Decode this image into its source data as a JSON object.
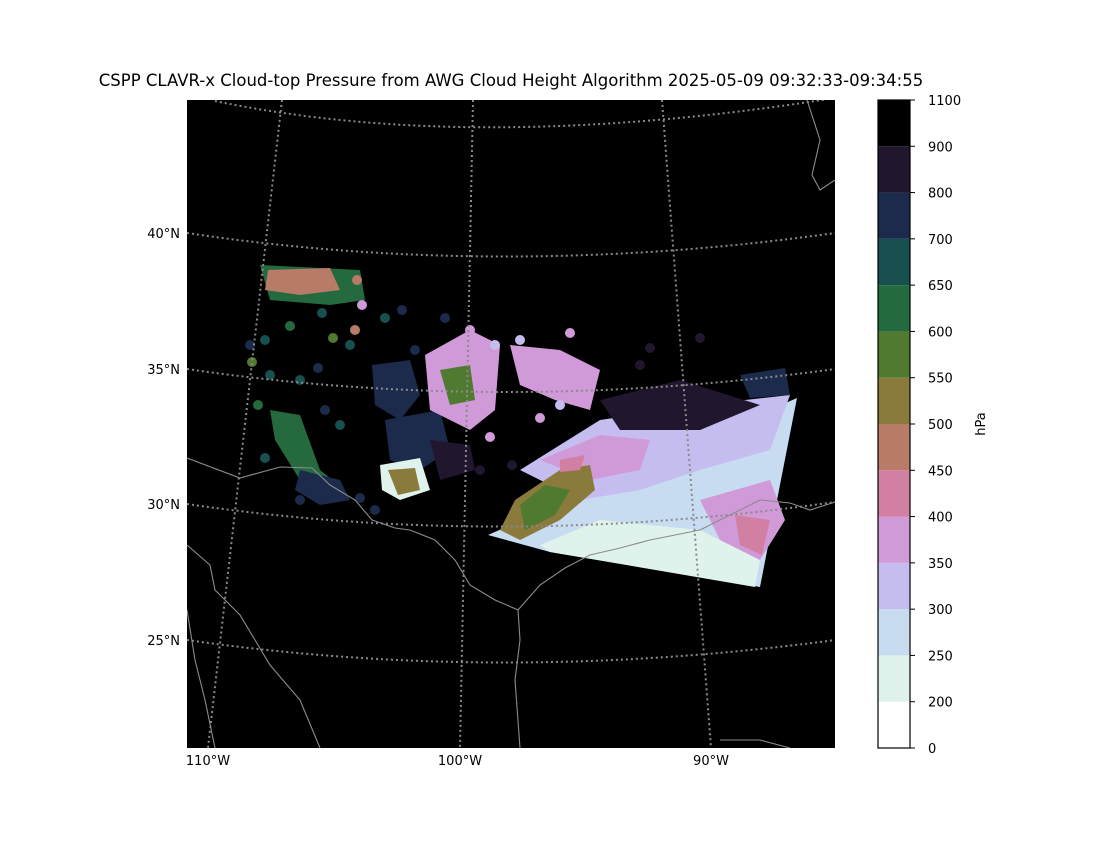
{
  "map": {
    "title": "CSPP CLAVR-x Cloud-top Pressure from AWG Cloud Height Algorithm 2025-05-09 09:32:33-09:34:55",
    "lat_labels": [
      "40°N",
      "35°N",
      "30°N",
      "25°N"
    ],
    "lon_labels": [
      "110°W",
      "100°W",
      "90°W"
    ]
  },
  "colorbar": {
    "label": "hPa",
    "ticks": [
      0,
      200,
      250,
      300,
      350,
      400,
      450,
      500,
      550,
      600,
      650,
      700,
      800,
      900,
      1100
    ],
    "colors": [
      "#ffffff",
      "#dff2ec",
      "#c7dcf0",
      "#c5bdf0",
      "#d09ad8",
      "#d27fa4",
      "#b77b68",
      "#8a7b3c",
      "#4f7a30",
      "#246a3e",
      "#17504f",
      "#1c2b4c",
      "#20162e",
      "#000000"
    ]
  }
}
